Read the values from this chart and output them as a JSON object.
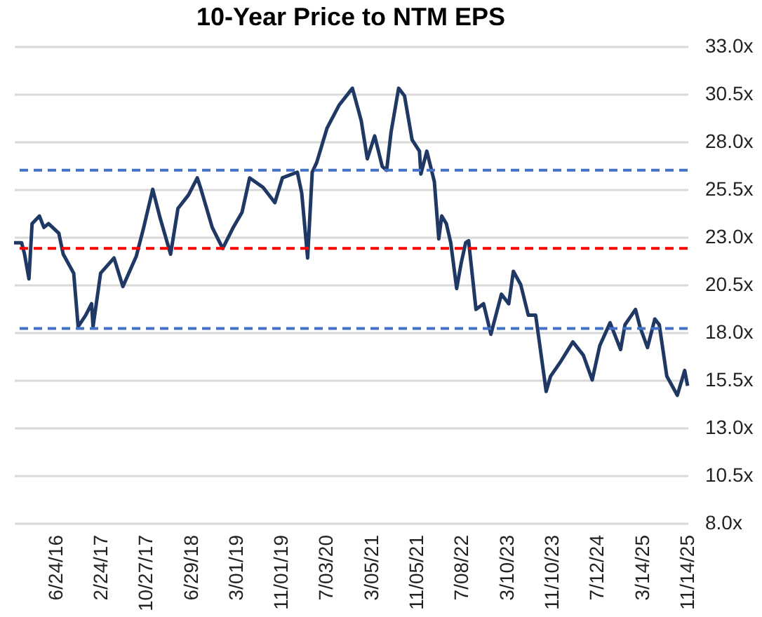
{
  "chart_data": {
    "type": "line",
    "title": "10-Year Price to NTM EPS",
    "x": [
      "2015-11-10",
      "2015-12-21",
      "2016-01-06",
      "2016-01-30",
      "2016-02-16",
      "2016-03-27",
      "2016-04-20",
      "2016-05-15",
      "2016-07-10",
      "2016-08-03",
      "2016-09-29",
      "2016-10-23",
      "2016-12-03",
      "2017-01-04",
      "2017-01-12",
      "2017-02-22",
      "2017-05-06",
      "2017-06-23",
      "2017-09-04",
      "2017-10-14",
      "2017-12-02",
      "2018-01-11",
      "2018-03-09",
      "2018-04-18",
      "2018-06-14",
      "2018-08-01",
      "2018-08-18",
      "2018-10-21",
      "2018-12-17",
      "2019-02-12",
      "2019-04-01",
      "2019-05-12",
      "2019-07-24",
      "2019-09-26",
      "2019-11-06",
      "2020-01-26",
      "2020-02-19",
      "2020-03-22",
      "2020-04-16",
      "2020-05-10",
      "2020-07-05",
      "2020-09-08",
      "2020-11-20",
      "2021-01-07",
      "2021-02-09",
      "2021-03-21",
      "2021-05-01",
      "2021-05-25",
      "2021-06-18",
      "2021-07-29",
      "2021-08-30",
      "2021-10-10",
      "2021-11-19",
      "2021-11-27",
      "2021-12-29",
      "2022-02-08",
      "2022-03-04",
      "2022-03-20",
      "2022-04-14",
      "2022-05-08",
      "2022-06-09",
      "2022-07-03",
      "2022-07-28",
      "2022-08-13",
      "2022-09-22",
      "2022-11-02",
      "2022-12-12",
      "2023-02-07",
      "2023-03-19",
      "2023-04-13",
      "2023-05-23",
      "2023-07-03",
      "2023-08-12",
      "2023-10-08",
      "2023-11-01",
      "2023-12-28",
      "2024-03-01",
      "2024-04-27",
      "2024-06-14",
      "2024-07-25",
      "2024-09-19",
      "2024-11-15",
      "2024-12-09",
      "2025-02-04",
      "2025-02-28",
      "2025-04-10",
      "2025-05-20",
      "2025-06-13",
      "2025-07-24",
      "2025-09-19",
      "2025-10-29",
      "2025-11-14"
    ],
    "series": [
      {
        "color": "#1f3864",
        "values": [
          22.7,
          22.7,
          22.1,
          20.8,
          23.7,
          24.1,
          23.5,
          23.7,
          23.2,
          22.1,
          21.1,
          18.3,
          18.9,
          19.5,
          18.3,
          21.1,
          21.9,
          20.4,
          22.0,
          23.5,
          25.5,
          24.0,
          22.1,
          24.5,
          25.2,
          26.1,
          25.6,
          23.5,
          22.4,
          23.5,
          24.3,
          26.1,
          25.6,
          24.8,
          26.1,
          26.4,
          25.3,
          21.9,
          26.4,
          26.9,
          28.7,
          29.9,
          30.8,
          29.1,
          27.1,
          28.3,
          26.7,
          26.5,
          28.5,
          30.8,
          30.4,
          28.1,
          27.5,
          26.3,
          27.5,
          25.9,
          22.9,
          24.1,
          23.7,
          22.7,
          20.3,
          21.6,
          22.7,
          22.8,
          19.2,
          19.5,
          17.9,
          20.0,
          19.5,
          21.2,
          20.5,
          18.9,
          18.9,
          14.9,
          15.7,
          16.5,
          17.5,
          16.8,
          15.5,
          17.3,
          18.5,
          17.1,
          18.4,
          19.2,
          18.3,
          17.2,
          18.7,
          18.4,
          15.7,
          14.7,
          16.0,
          15.2
        ]
      }
    ],
    "xlim": [
      "2015-11-10",
      "2025-11-14"
    ],
    "xticks": [
      {
        "value": "2016-06-24",
        "label": "6/24/16"
      },
      {
        "value": "2017-02-24",
        "label": "2/24/17"
      },
      {
        "value": "2017-10-27",
        "label": "10/27/17"
      },
      {
        "value": "2018-06-29",
        "label": "6/29/18"
      },
      {
        "value": "2019-03-01",
        "label": "3/01/19"
      },
      {
        "value": "2019-11-01",
        "label": "11/01/19"
      },
      {
        "value": "2020-07-03",
        "label": "7/03/20"
      },
      {
        "value": "2021-03-05",
        "label": "3/05/21"
      },
      {
        "value": "2021-11-05",
        "label": "11/05/21"
      },
      {
        "value": "2022-07-08",
        "label": "7/08/22"
      },
      {
        "value": "2023-03-10",
        "label": "3/10/23"
      },
      {
        "value": "2023-11-10",
        "label": "11/10/23"
      },
      {
        "value": "2024-07-12",
        "label": "7/12/24"
      },
      {
        "value": "2025-03-14",
        "label": "3/14/25"
      },
      {
        "value": "2025-11-14",
        "label": "11/14/25"
      }
    ],
    "ylim": [
      8.0,
      33.0
    ],
    "yticks": [
      {
        "value": 8.0,
        "label": "8.0x"
      },
      {
        "value": 10.5,
        "label": "10.5x"
      },
      {
        "value": 13.0,
        "label": "13.0x"
      },
      {
        "value": 15.5,
        "label": "15.5x"
      },
      {
        "value": 18.0,
        "label": "18.0x"
      },
      {
        "value": 20.5,
        "label": "20.5x"
      },
      {
        "value": 23.0,
        "label": "23.0x"
      },
      {
        "value": 25.5,
        "label": "25.5x"
      },
      {
        "value": 28.0,
        "label": "28.0x"
      },
      {
        "value": 30.5,
        "label": "30.5x"
      },
      {
        "value": 33.0,
        "label": "33.0x"
      }
    ],
    "ref_lines": [
      {
        "axis": "y",
        "value": 26.5,
        "color": "#4472c4",
        "line_style": "dashed"
      },
      {
        "axis": "y",
        "value": 22.4,
        "color": "#ff0000",
        "line_style": "dashed"
      },
      {
        "axis": "y",
        "value": 18.2,
        "color": "#4472c4",
        "line_style": "dashed"
      }
    ],
    "grid": "y",
    "marker": "none",
    "line_style": "solid"
  }
}
